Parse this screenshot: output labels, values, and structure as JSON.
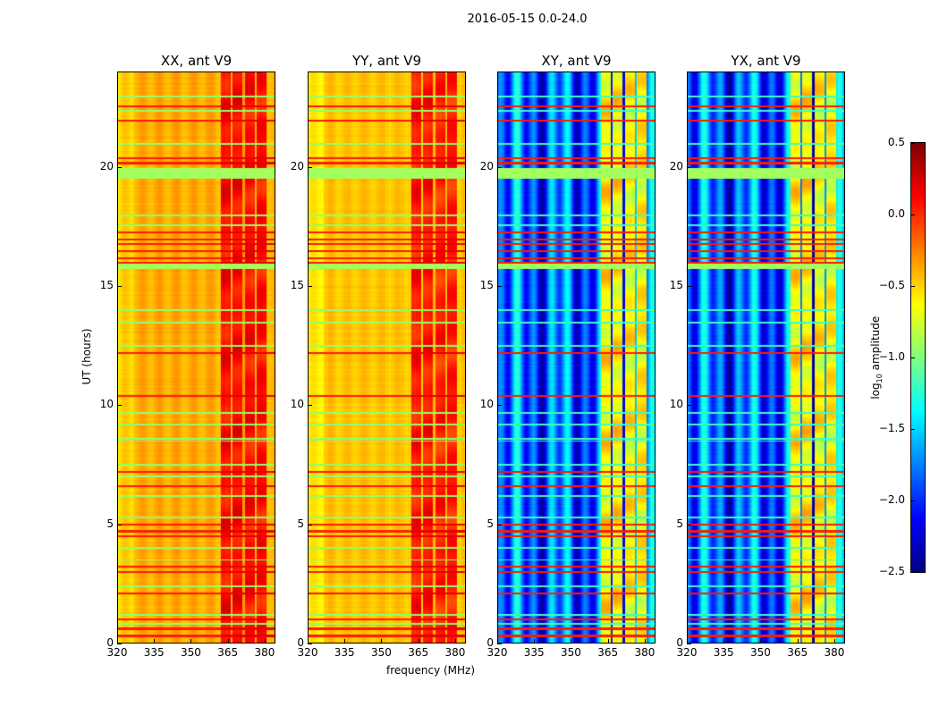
{
  "chart_data": {
    "type": "heatmap",
    "title": "2016-05-15 0.0-24.0",
    "xlabel": "frequency (MHz)",
    "ylabel": "UT (hours)",
    "xlim": [
      320,
      384.4
    ],
    "ylim": [
      0,
      24
    ],
    "xticks": [
      320,
      335,
      350,
      365,
      380
    ],
    "yticks": [
      0,
      5,
      10,
      15,
      20
    ],
    "colormap": "jet",
    "colorbar": {
      "label": "log",
      "label_sub": "10",
      "label_rest": " amplitude",
      "range": [
        -2.5,
        0.5
      ],
      "ticks": [
        "0.5",
        "0.0",
        "−0.5",
        "−1.0",
        "−1.5",
        "−2.0",
        "−2.5"
      ],
      "tick_values": [
        0.5,
        0.0,
        -0.5,
        -1.0,
        -1.5,
        -2.0,
        -2.5
      ]
    },
    "panels": [
      {
        "title": "XX, ant V9",
        "base_level": -0.38,
        "bright_level": 0.05,
        "stripe_amp": 0.06
      },
      {
        "title": "YY, ant V9",
        "base_level": -0.45,
        "bright_level": 0.0,
        "stripe_amp": 0.05
      },
      {
        "title": "XY, ant V9",
        "base_level": -1.85,
        "bright_level": -0.75,
        "stripe_amp": 0.35
      },
      {
        "title": "YX, ant V9",
        "base_level": -1.85,
        "bright_level": -0.75,
        "stripe_amp": 0.35
      }
    ],
    "bright_subbands_mhz": [
      [
        362,
        366
      ],
      [
        367,
        371
      ],
      [
        372,
        376
      ],
      [
        377,
        381
      ]
    ],
    "rfi_high_ut": [
      0.3,
      0.6,
      1.0,
      2.1,
      3.0,
      3.2,
      4.5,
      4.7,
      5.0,
      6.6,
      7.2,
      10.4,
      12.2,
      16.0,
      16.2,
      16.5,
      16.8,
      17.0,
      17.3,
      20.2,
      20.4,
      22.0,
      22.6
    ],
    "rfi_mid_ut": [
      0.8,
      1.2,
      2.4,
      3.5,
      4.0,
      5.3,
      6.2,
      7.0,
      7.5,
      8.5,
      8.6,
      9.2,
      9.7,
      12.5,
      13.5,
      14.0,
      17.6,
      18.0,
      21.0,
      22.4,
      23.0
    ],
    "rfi_bands_ut": [
      [
        19.55,
        20.0
      ],
      [
        15.75,
        16.05
      ]
    ]
  }
}
